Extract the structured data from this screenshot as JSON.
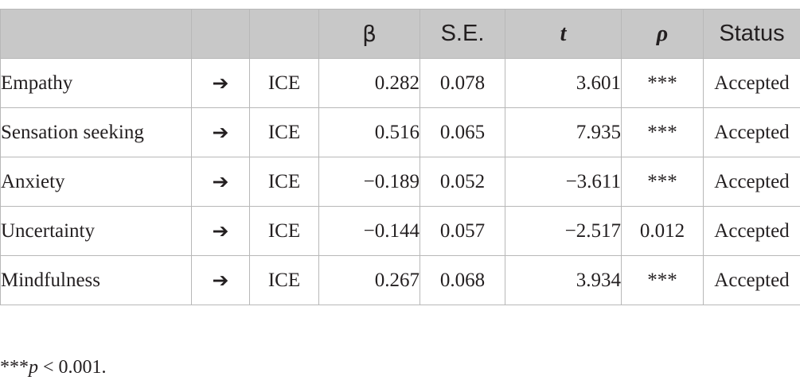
{
  "table": {
    "headers": {
      "predictor": "",
      "arrow": "",
      "outcome": "",
      "beta": "β",
      "se": "S.E.",
      "t": "t",
      "p": "ρ",
      "status": "Status"
    },
    "rows": [
      {
        "predictor": "Empathy",
        "arrow": "➔",
        "outcome": "ICE",
        "beta": "0.282",
        "se": "0.078",
        "t": "3.601",
        "p": "***",
        "status": "Accepted"
      },
      {
        "predictor": "Sensation seeking",
        "arrow": "➔",
        "outcome": "ICE",
        "beta": "0.516",
        "se": "0.065",
        "t": "7.935",
        "p": "***",
        "status": "Accepted"
      },
      {
        "predictor": "Anxiety",
        "arrow": "➔",
        "outcome": "ICE",
        "beta": "−0.189",
        "se": "0.052",
        "t": "−3.611",
        "p": "***",
        "status": "Accepted"
      },
      {
        "predictor": "Uncertainty",
        "arrow": "➔",
        "outcome": "ICE",
        "beta": "−0.144",
        "se": "0.057",
        "t": "−2.517",
        "p": "0.012",
        "status": "Accepted"
      },
      {
        "predictor": "Mindfulness",
        "arrow": "➔",
        "outcome": "ICE",
        "beta": "0.267",
        "se": "0.068",
        "t": "3.934",
        "p": "***",
        "status": "Accepted"
      }
    ]
  },
  "footnote": {
    "marker": "***",
    "symbol": "p",
    "condition": " < 0.001."
  },
  "colors": {
    "header_background": "#c8c8c8",
    "grid_line": "#b8b8b8",
    "text": "#231f20"
  }
}
